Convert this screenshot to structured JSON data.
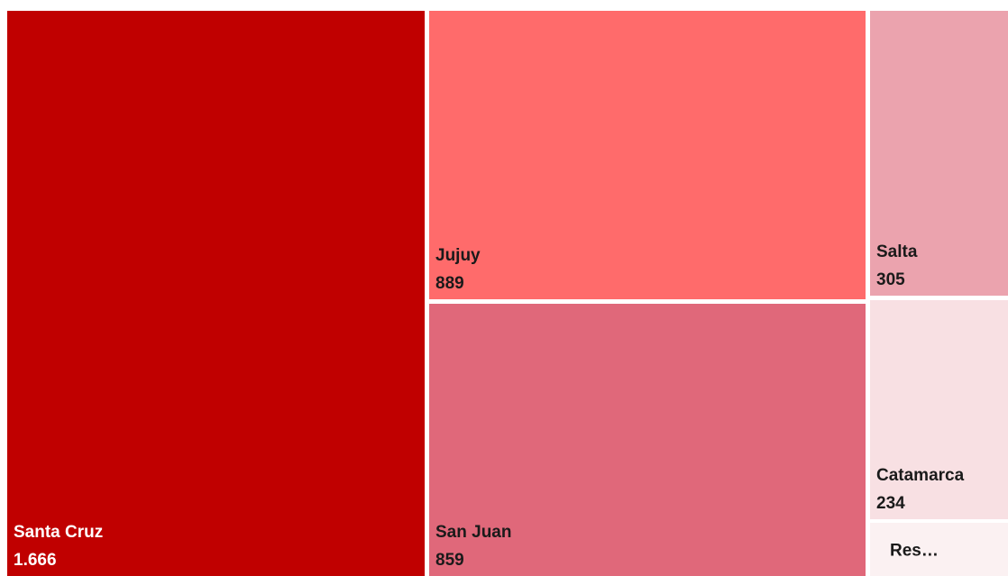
{
  "chart_data": {
    "type": "treemap",
    "title": "",
    "value_format": "thousands separator '.'",
    "items": [
      {
        "label": "Santa Cruz",
        "value_label": "1.666",
        "value": 1666,
        "color": "#C00000",
        "text_color": "#FFFFFF"
      },
      {
        "label": "Jujuy",
        "value_label": "889",
        "value": 889,
        "color": "#FF6B6B",
        "text_color": "#1A1A1A"
      },
      {
        "label": "San Juan",
        "value_label": "859",
        "value": 859,
        "color": "#E0687A",
        "text_color": "#1A1A1A"
      },
      {
        "label": "Salta",
        "value_label": "305",
        "value": 305,
        "color": "#EBA3AE",
        "text_color": "#1A1A1A"
      },
      {
        "label": "Catamarca",
        "value_label": "234",
        "value": 234,
        "color": "#F8E0E3",
        "text_color": "#1A1A1A"
      },
      {
        "label": "Res…",
        "value_label": "",
        "value": null,
        "color": "#FBF1F2",
        "text_color": "#1A1A1A"
      }
    ]
  }
}
